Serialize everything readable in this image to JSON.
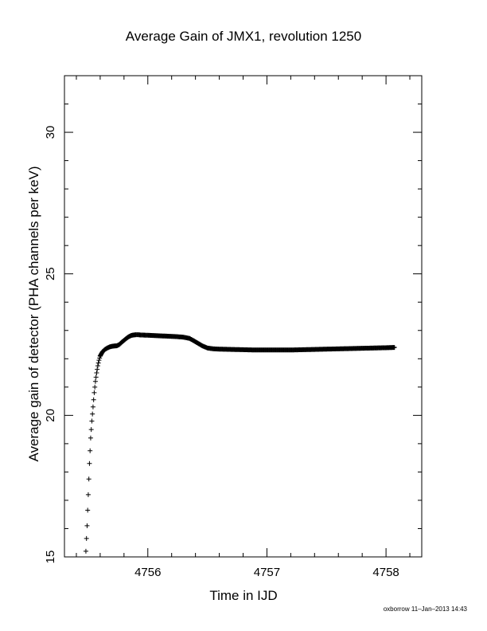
{
  "chart_data": {
    "type": "scatter",
    "title": "Average Gain of JMX1, revolution 1250",
    "xlabel": "Time in IJD",
    "ylabel": "Average gain of detector (PHA channels per keV)",
    "footer": "oxborrow 11–Jan–2013 14:43",
    "xlim": [
      4755.3,
      4758.3
    ],
    "ylim": [
      15,
      32
    ],
    "x_ticks": [
      4756,
      4757,
      4758
    ],
    "y_ticks": [
      15,
      20,
      25,
      30
    ],
    "marker": "plus",
    "grid": false,
    "series": [
      {
        "x": [
          4755.48,
          4755.49,
          4755.5,
          4755.51,
          4755.52,
          4755.53,
          4755.54,
          4755.55,
          4755.56,
          4755.57,
          4755.58,
          4755.59,
          4755.6,
          4755.62,
          4755.64,
          4755.66,
          4755.68,
          4755.7,
          4755.72,
          4755.74,
          4755.76,
          4755.78,
          4755.8,
          4755.82,
          4755.84,
          4755.86,
          4755.88,
          4755.9,
          4755.92,
          4755.94,
          4755.96,
          4755.98,
          4756.0,
          4756.05,
          4756.1,
          4756.15,
          4756.2,
          4756.25,
          4756.3,
          4756.35,
          4756.38,
          4756.42,
          4756.46,
          4756.5,
          4756.55,
          4756.6,
          4756.7,
          4756.8,
          4756.9,
          4757.0,
          4757.1,
          4757.2,
          4757.3,
          4757.4,
          4757.5,
          4757.6,
          4757.7,
          4757.8,
          4757.9,
          4758.0,
          4758.07
        ],
        "y": [
          15.2,
          16.1,
          17.2,
          18.3,
          19.2,
          19.8,
          20.3,
          20.8,
          21.2,
          21.5,
          21.75,
          21.95,
          22.1,
          22.25,
          22.33,
          22.38,
          22.42,
          22.44,
          22.45,
          22.46,
          22.5,
          22.58,
          22.65,
          22.72,
          22.78,
          22.82,
          22.84,
          22.85,
          22.85,
          22.84,
          22.84,
          22.83,
          22.83,
          22.82,
          22.81,
          22.8,
          22.79,
          22.78,
          22.76,
          22.72,
          22.65,
          22.55,
          22.45,
          22.38,
          22.35,
          22.34,
          22.33,
          22.32,
          22.31,
          22.31,
          22.31,
          22.31,
          22.32,
          22.33,
          22.34,
          22.35,
          22.36,
          22.37,
          22.38,
          22.39,
          22.4
        ]
      }
    ]
  }
}
